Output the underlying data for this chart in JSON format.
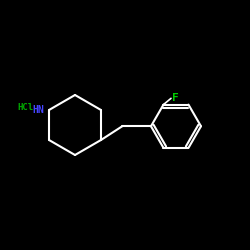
{
  "background": "#000000",
  "bond_color": "#ffffff",
  "F_color": "#00cc00",
  "N_color": "#4444ff",
  "HCl_color": "#00aa00",
  "label_F": "F",
  "label_HN": "HN",
  "label_HCl": "HCl",
  "bond_lw": 1.5,
  "figsize": [
    2.5,
    2.5
  ],
  "dpi": 100
}
